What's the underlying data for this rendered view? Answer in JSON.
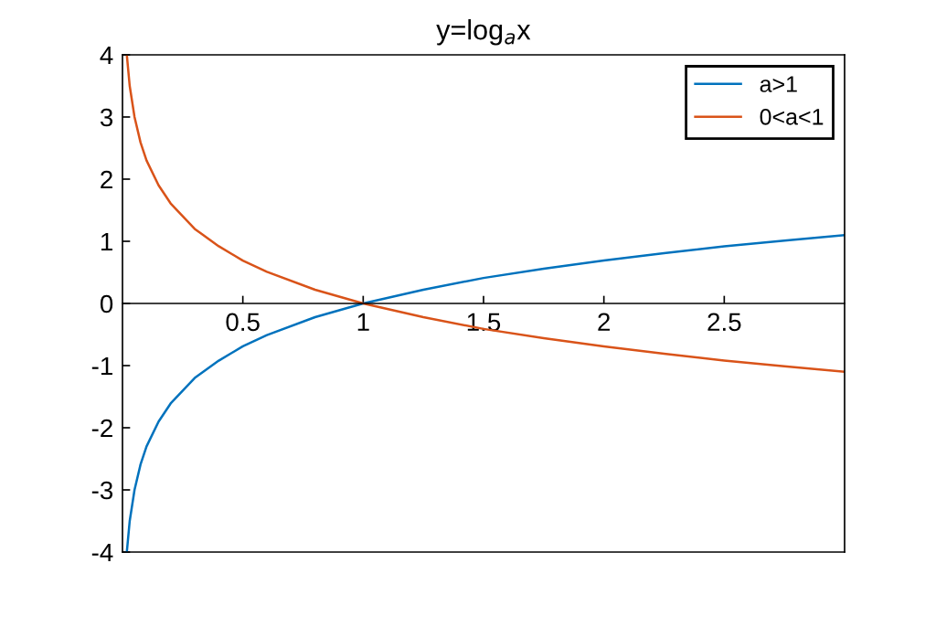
{
  "chart_data": {
    "type": "line",
    "title": "y=log$_{a}$x",
    "x": [
      0.018,
      0.03,
      0.05,
      0.075,
      0.1,
      0.15,
      0.2,
      0.3,
      0.4,
      0.5,
      0.6,
      0.8,
      1.0,
      1.25,
      1.5,
      1.75,
      2.0,
      2.25,
      2.5,
      2.75,
      3.0
    ],
    "series": [
      {
        "name": "a>1",
        "color": "#0072bd",
        "values": [
          -4.0,
          -3.5,
          -3.0,
          -2.59,
          -2.3,
          -1.9,
          -1.61,
          -1.2,
          -0.92,
          -0.69,
          -0.51,
          -0.22,
          0,
          0.22,
          0.41,
          0.56,
          0.69,
          0.81,
          0.92,
          1.01,
          1.1
        ]
      },
      {
        "name": "0<a<1",
        "color": "#d95319",
        "values": [
          4.0,
          3.5,
          3.0,
          2.59,
          2.3,
          1.9,
          1.61,
          1.2,
          0.92,
          0.69,
          0.51,
          0.22,
          0,
          -0.22,
          -0.41,
          -0.56,
          -0.69,
          -0.81,
          -0.92,
          -1.01,
          -1.1
        ]
      }
    ],
    "xlim": [
      0,
      3
    ],
    "xticks": [
      0.5,
      1,
      1.5,
      2,
      2.5
    ],
    "ylim": [
      -4,
      4
    ],
    "yticks": [
      -4,
      -3,
      -2,
      -1,
      0,
      1,
      2,
      3,
      4
    ],
    "grid": false,
    "legend": "top right",
    "line_style": "solid",
    "marker": "none"
  }
}
